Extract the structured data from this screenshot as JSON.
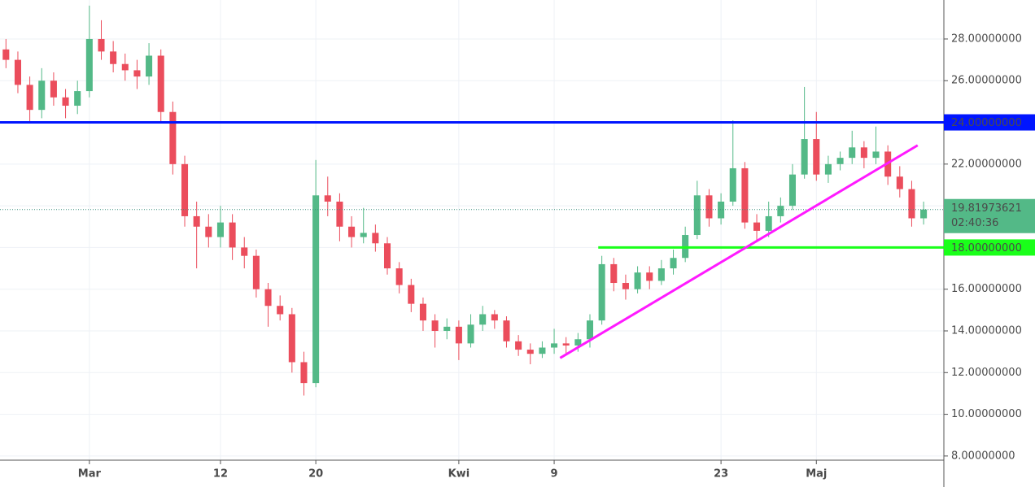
{
  "chart_data": {
    "type": "candlestick",
    "x": [
      -7,
      -6,
      -5,
      -4,
      -3,
      -2,
      -1,
      0,
      1,
      2,
      3,
      4,
      5,
      6,
      7,
      8,
      9,
      10,
      11,
      12,
      13,
      14,
      15,
      16,
      17,
      18,
      19,
      20,
      21,
      22,
      23,
      24,
      25,
      26,
      27,
      28,
      29,
      30,
      31,
      32,
      33,
      34,
      35,
      36,
      37,
      38,
      39,
      40,
      41,
      42,
      43,
      44,
      45,
      46,
      47,
      48,
      49,
      50,
      51,
      52,
      53,
      54,
      55,
      56,
      57,
      58,
      59,
      60,
      61,
      62,
      63,
      64,
      65,
      66,
      67,
      68,
      69,
      70
    ],
    "open": [
      27.5,
      27,
      25.8,
      24.6,
      26,
      25.2,
      24.8,
      25.5,
      28,
      27.4,
      26.8,
      26.5,
      26.2,
      27.2,
      24.5,
      22,
      19.5,
      19,
      18.5,
      19.2,
      18,
      17.6,
      16,
      15.2,
      14.8,
      12.5,
      11.5,
      20.5,
      20.2,
      19,
      18.5,
      18.7,
      18.2,
      17,
      16.2,
      15.3,
      14.5,
      14,
      14.2,
      13.4,
      14.3,
      14.8,
      14.5,
      13.5,
      13.1,
      12.9,
      13.2,
      13.4,
      13.3,
      13.6,
      14.5,
      17.2,
      16.3,
      16,
      16.8,
      16.4,
      17,
      17.5,
      18.6,
      20.5,
      19.4,
      20.2,
      21.8,
      19.2,
      18.8,
      19.5,
      20,
      21.5,
      23.2,
      21.5,
      22,
      22.3,
      22.8,
      22.3,
      22.6,
      21.4,
      20.8,
      19.4
    ],
    "high": [
      28,
      27.4,
      26.2,
      26.6,
      26.4,
      25.6,
      26,
      29.6,
      28.9,
      27.9,
      27.3,
      27,
      27.8,
      27.5,
      25,
      22.4,
      20.2,
      19.6,
      20,
      19.6,
      18.5,
      17.9,
      16.3,
      15.7,
      15.1,
      13,
      22.2,
      21.4,
      20.6,
      19.5,
      19.9,
      19.1,
      18.5,
      17.3,
      16.5,
      15.6,
      14.8,
      14.6,
      14.5,
      14.8,
      15.2,
      15,
      14.7,
      13.8,
      13.4,
      13.5,
      14.1,
      13.7,
      13.9,
      14.8,
      17.6,
      17.5,
      16.7,
      17.1,
      17.1,
      17.4,
      17.9,
      19,
      21.2,
      20.8,
      20.6,
      24.1,
      22.1,
      19.6,
      20.2,
      20.4,
      22,
      25.7,
      24.5,
      22.4,
      22.6,
      23.6,
      23.1,
      23.8,
      22.9,
      21.9,
      21.2,
      20.2
    ],
    "low": [
      26.6,
      25.4,
      24,
      24.2,
      24.8,
      24.2,
      24.4,
      25.2,
      27,
      26.4,
      26,
      25.6,
      25.8,
      24,
      21.5,
      19,
      17,
      18,
      18,
      17.4,
      17,
      15.6,
      14.2,
      14.5,
      12,
      10.9,
      11.3,
      19.5,
      18.3,
      18,
      18.2,
      17.8,
      16.7,
      15.8,
      14.9,
      14,
      13.2,
      13.6,
      12.6,
      13.2,
      14,
      14.1,
      13.2,
      12.8,
      12.4,
      12.7,
      12.9,
      12.9,
      13,
      13.2,
      14.3,
      15.9,
      15.5,
      15.8,
      16,
      16.2,
      16.7,
      17.3,
      18.4,
      19,
      19.1,
      20,
      18.9,
      18.3,
      18.5,
      19.2,
      19.8,
      21.3,
      21.2,
      21.1,
      21.7,
      22,
      21.8,
      22,
      21,
      20.4,
      19,
      19.1
    ],
    "close": [
      27,
      25.8,
      24.6,
      26,
      25.2,
      24.8,
      25.5,
      28,
      27.4,
      26.8,
      26.5,
      26.2,
      27.2,
      24.5,
      22,
      19.5,
      19,
      18.5,
      19.2,
      18,
      17.6,
      16,
      15.2,
      14.8,
      12.5,
      11.5,
      20.5,
      20.2,
      19,
      18.5,
      18.7,
      18.2,
      17,
      16.2,
      15.3,
      14.5,
      14,
      14.2,
      13.4,
      14.3,
      14.8,
      14.5,
      13.5,
      13.1,
      12.9,
      13.2,
      13.4,
      13.3,
      13.6,
      14.5,
      17.2,
      16.3,
      16,
      16.8,
      16.4,
      17,
      17.5,
      18.6,
      20.5,
      19.4,
      20.2,
      21.8,
      19.2,
      18.8,
      19.5,
      20,
      21.5,
      23.2,
      21.5,
      22,
      22.3,
      22.8,
      22.3,
      22.6,
      21.4,
      20.8,
      19.4,
      19.81973621
    ],
    "up_color": "#53b987",
    "down_color": "#eb4d5c",
    "xlim": [
      -7.5,
      71.7
    ],
    "xticks": [
      {
        "value": 0,
        "label": "Mar"
      },
      {
        "value": 11,
        "label": "12"
      },
      {
        "value": 19,
        "label": "20"
      },
      {
        "value": 31,
        "label": "Kwi"
      },
      {
        "value": 39,
        "label": "9"
      },
      {
        "value": 53,
        "label": "23"
      },
      {
        "value": 61,
        "label": "Maj"
      }
    ],
    "ylim": [
      7.8,
      29.87
    ],
    "yticks": [
      {
        "value": 8,
        "label": "8.00000000"
      },
      {
        "value": 10,
        "label": "10.00000000"
      },
      {
        "value": 12,
        "label": "12.00000000"
      },
      {
        "value": 14,
        "label": "14.00000000"
      },
      {
        "value": 16,
        "label": "16.00000000"
      },
      {
        "value": 18,
        "label": "18.00000000"
      },
      {
        "value": 20,
        "label": "20.00000000"
      },
      {
        "value": 22,
        "label": "22.00000000"
      },
      {
        "value": 24,
        "label": "24.00000000"
      },
      {
        "value": 26,
        "label": "26.00000000"
      },
      {
        "value": 28,
        "label": "28.00000000"
      }
    ],
    "grid": true,
    "last_price": 19.81973621,
    "countdown": "02:40:36",
    "levels": [
      {
        "value": 24,
        "label": "24.00000000",
        "color": "#0015ff"
      },
      {
        "value": 18,
        "label": "18.00000000",
        "color": "#1aff1a",
        "x_start": 42.7
      }
    ],
    "trendlines": [
      {
        "color": "#ff1aff",
        "x": [
          39.5,
          69.5
        ],
        "y": [
          12.7,
          22.9
        ]
      }
    ]
  }
}
